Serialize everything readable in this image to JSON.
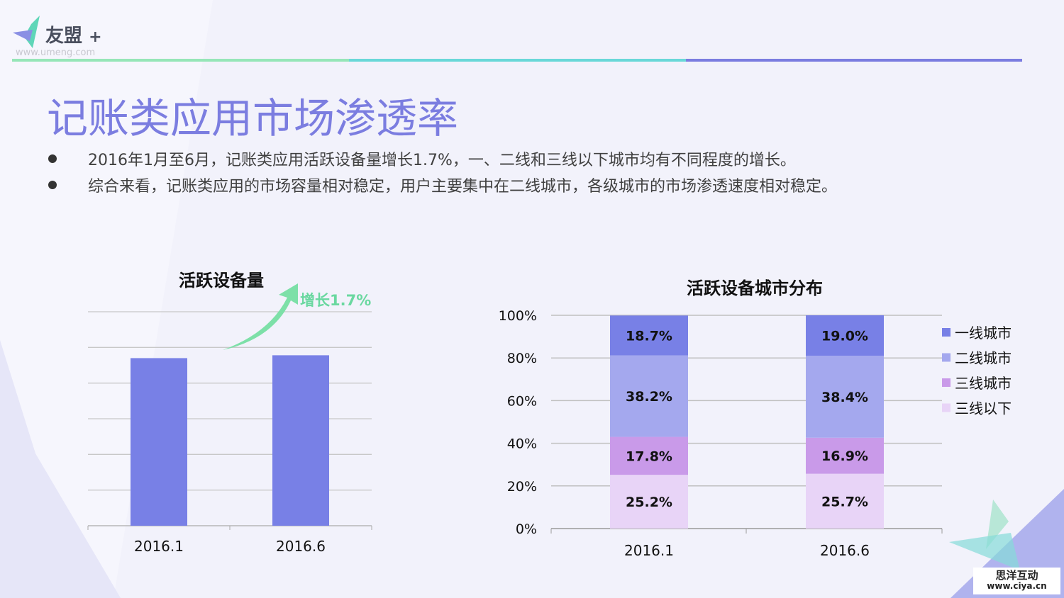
{
  "logo": {
    "text": "友盟",
    "plus": "+",
    "url": "www.umeng.com"
  },
  "title": "记账类应用市场渗透率",
  "bullets": [
    "2016年1月至6月，记账类应用活跃设备量增长1.7%，一、二线和三线以下城市均有不同程度的增长。",
    "综合来看，记账类应用的市场容量相对稳定，用户主要集中在二线城市，各级城市的市场渗透速度相对稳定。"
  ],
  "watermark": {
    "line1": "思洋互动",
    "line2": "www.ciya.cn"
  },
  "colors": {
    "accent": "#7b7de0",
    "bar": "#7880e6",
    "growth": "#7de0a8"
  },
  "chart_data": [
    {
      "type": "bar",
      "title": "活跃设备量",
      "categories": [
        "2016.1",
        "2016.6"
      ],
      "values": [
        4.7,
        4.78
      ],
      "ylim": [
        0,
        6
      ],
      "grid": true,
      "annotation": "增长1.7%"
    },
    {
      "type": "bar",
      "stacked": true,
      "title": "活跃设备城市分布",
      "categories": [
        "2016.1",
        "2016.6"
      ],
      "ylim": [
        0,
        100
      ],
      "yticks": [
        "0%",
        "20%",
        "40%",
        "60%",
        "80%",
        "100%"
      ],
      "grid": true,
      "legend": "right",
      "series": [
        {
          "name": "三线以下",
          "values": [
            25.2,
            25.7
          ],
          "labels": [
            "25.2%",
            "25.7%"
          ],
          "color": "#e8d4f7"
        },
        {
          "name": "三线城市",
          "values": [
            17.8,
            16.9
          ],
          "labels": [
            "17.8%",
            "16.9%"
          ],
          "color": "#c99ae9"
        },
        {
          "name": "二线城市",
          "values": [
            38.2,
            38.4
          ],
          "labels": [
            "38.2%",
            "38.4%"
          ],
          "color": "#a4a8ee"
        },
        {
          "name": "一线城市",
          "values": [
            18.7,
            19.0
          ],
          "labels": [
            "18.7%",
            "19.0%"
          ],
          "color": "#7880e6"
        }
      ],
      "legend_order": [
        "一线城市",
        "二线城市",
        "三线城市",
        "三线以下"
      ]
    }
  ]
}
